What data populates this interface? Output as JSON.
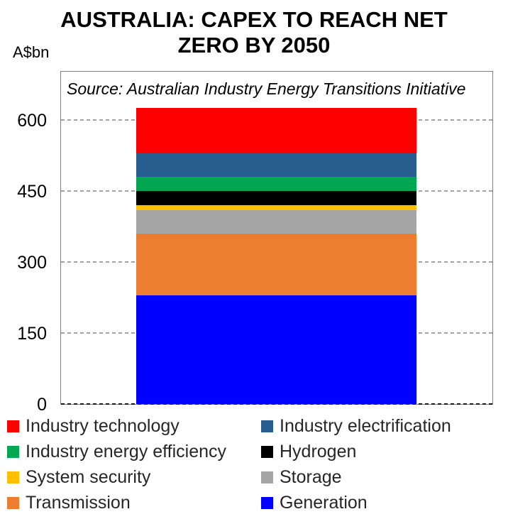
{
  "title": {
    "line1": "AUSTRALIA: CAPEX TO REACH NET",
    "line2": "ZERO BY 2050"
  },
  "y_axis_unit_label": "A$bn",
  "source_note": "Source: Australian Industry Energy Transitions Initiative",
  "chart_data": {
    "type": "bar",
    "stacked": true,
    "title": "AUSTRALIA: CAPEX TO REACH NET ZERO BY 2050",
    "ylabel": "A$bn",
    "xlabel": "",
    "source": "Source: Australian Industry Energy Transitions Initiative",
    "categories": [
      "Capex to reach net zero by 2050"
    ],
    "series": [
      {
        "name": "Generation",
        "value": 230,
        "color": "#0000FF"
      },
      {
        "name": "Transmission",
        "value": 130,
        "color": "#ED7D31"
      },
      {
        "name": "Storage",
        "value": 50,
        "color": "#A6A6A6"
      },
      {
        "name": "System security",
        "value": 10,
        "color": "#FFC000"
      },
      {
        "name": "Hydrogen",
        "value": 30,
        "color": "#000000"
      },
      {
        "name": "Industry energy efficiency",
        "value": 30,
        "color": "#00A651"
      },
      {
        "name": "Industry electrification",
        "value": 50,
        "color": "#275E8F"
      },
      {
        "name": "Industry technology",
        "value": 95,
        "color": "#FF0000"
      }
    ],
    "stack_order": "bottom-to-top",
    "total": 625,
    "y_ticks": [
      0,
      150,
      300,
      450,
      600
    ],
    "ylim": [
      0,
      705
    ],
    "grid": "horizontal-dashed",
    "legend_position": "bottom",
    "legend_columns": 2,
    "legend_order_row_major": [
      "Industry technology",
      "Industry electrification",
      "Industry energy efficiency",
      "Hydrogen",
      "System security",
      "Storage",
      "Transmission",
      "Generation"
    ]
  }
}
